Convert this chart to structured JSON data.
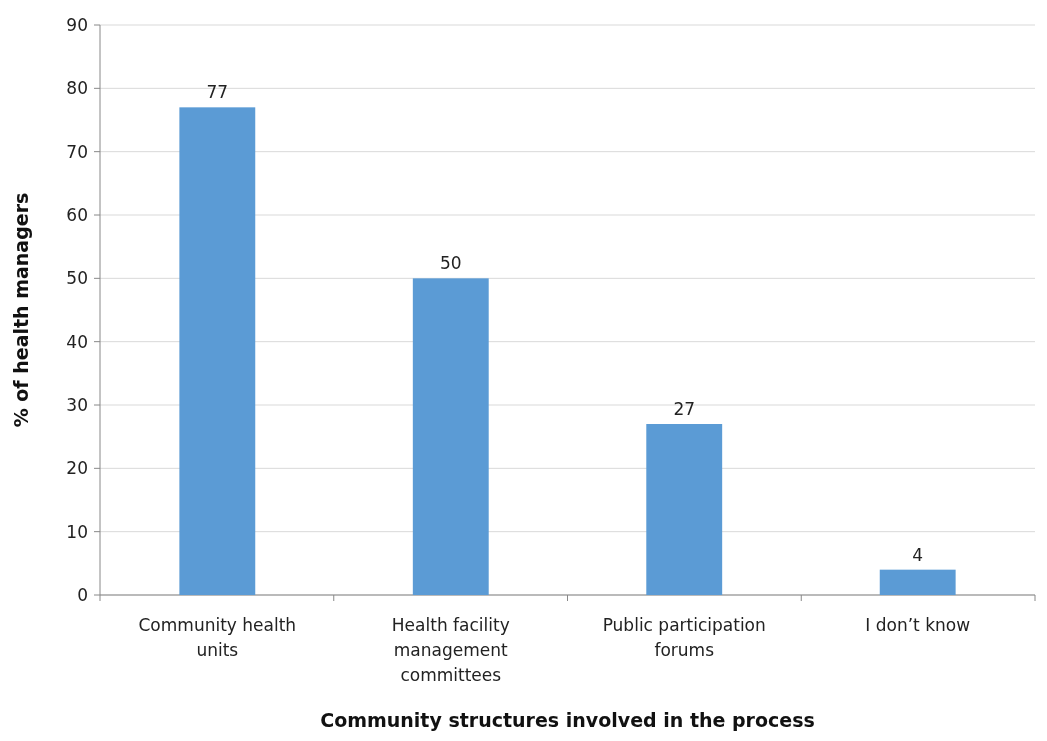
{
  "chart_data": {
    "type": "bar",
    "xlabel": "Community structures involved in the process",
    "ylabel": "% of health managers",
    "categories": [
      "Community health units",
      "Health facility management committees",
      "Public participation forums",
      "I don’t know"
    ],
    "values": [
      77,
      50,
      27,
      4
    ],
    "color": "#5b9bd5",
    "ylim": [
      0,
      90
    ],
    "yticks": [
      0,
      10,
      20,
      30,
      40,
      50,
      60,
      70,
      80,
      90
    ],
    "grid": "y",
    "data_labels": true
  }
}
